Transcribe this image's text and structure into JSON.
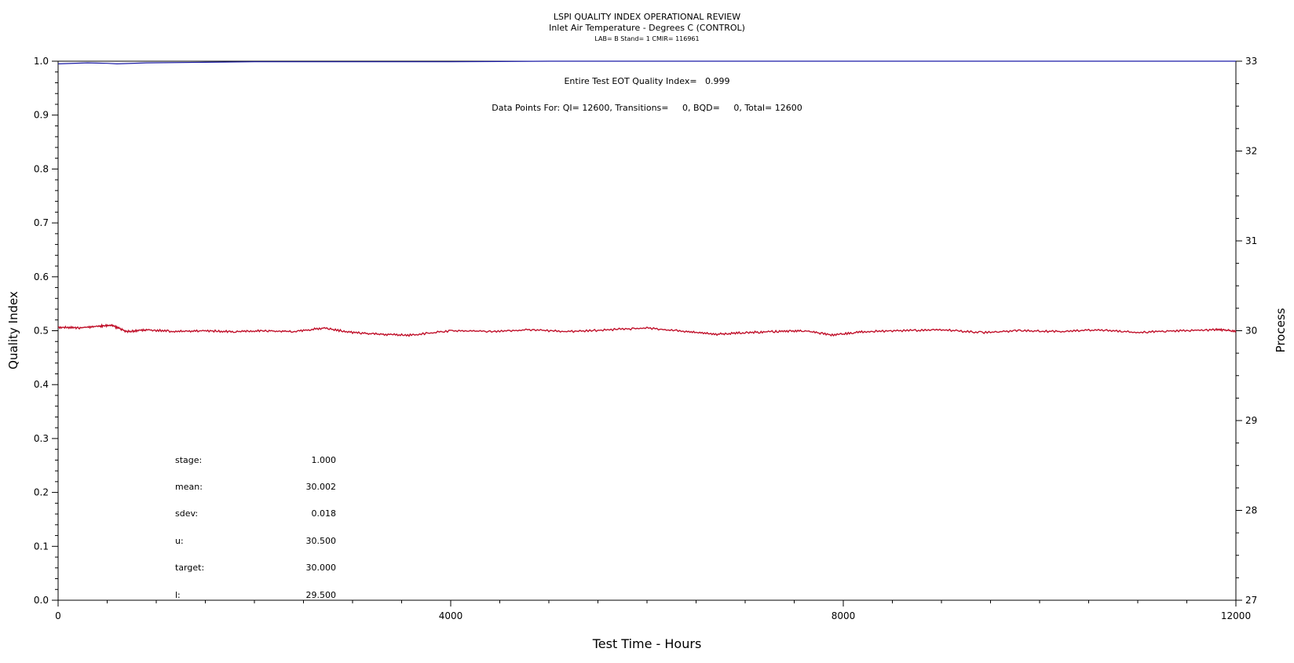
{
  "chart_data": {
    "type": "line",
    "title": "LSPI QUALITY INDEX OPERATIONAL REVIEW",
    "subtitle": "Inlet Air Temperature - Degrees C (CONTROL)",
    "sub_subtitle": "LAB= B Stand= 1 CMIR= 116961",
    "xlabel": "Test Time - Hours",
    "ylabel_left": "Quality Index",
    "ylabel_right": "Process",
    "xlim": [
      0,
      12000
    ],
    "ylim_left": [
      0.0,
      1.0
    ],
    "ylim_right": [
      27,
      33
    ],
    "x_ticks": [
      "0",
      "4000",
      "8000",
      "12000"
    ],
    "y_left_ticks": [
      "0.0",
      "0.1",
      "0.2",
      "0.3",
      "0.4",
      "0.5",
      "0.6",
      "0.7",
      "0.8",
      "0.9",
      "1.0"
    ],
    "y_right_ticks": [
      "27",
      "28",
      "29",
      "30",
      "31",
      "32",
      "33"
    ],
    "annotations": {
      "eot": "Entire Test EOT Quality Index=   0.999",
      "datapoints": "Data Points For: QI= 12600, Transitions=     0, BQD=     0, Total= 12600"
    },
    "stats": [
      {
        "label": "stage:",
        "value": "1.000"
      },
      {
        "label": "mean:",
        "value": "30.002"
      },
      {
        "label": "sdev:",
        "value": "0.018"
      },
      {
        "label": "u:",
        "value": "30.500"
      },
      {
        "label": "target:",
        "value": "30.000"
      },
      {
        "label": "l:",
        "value": "29.500"
      }
    ],
    "series": [
      {
        "axis": "left",
        "color": "#1a1aa6",
        "x": [
          0,
          300,
          500,
          600,
          900,
          1500,
          2000,
          3000,
          4000,
          5000,
          12000
        ],
        "y": [
          0.995,
          0.997,
          0.996,
          0.995,
          0.997,
          0.998,
          0.999,
          0.999,
          0.999,
          1.0,
          1.0
        ]
      },
      {
        "axis": "right",
        "color": "#c0102a",
        "x": [
          0,
          200,
          400,
          550,
          700,
          900,
          1200,
          1500,
          1800,
          2100,
          2400,
          2700,
          3000,
          3300,
          3600,
          4000,
          4400,
          4800,
          5200,
          5600,
          6000,
          6400,
          6700,
          7000,
          7300,
          7600,
          7900,
          8200,
          8600,
          9000,
          9400,
          9800,
          10200,
          10600,
          11000,
          11400,
          11800,
          12000
        ],
        "y": [
          30.04,
          30.03,
          30.05,
          30.06,
          29.99,
          30.01,
          29.99,
          30.0,
          29.99,
          30.0,
          29.99,
          30.03,
          29.98,
          29.96,
          29.95,
          30.0,
          29.99,
          30.01,
          29.99,
          30.01,
          30.03,
          29.99,
          29.96,
          29.98,
          29.99,
          30.0,
          29.95,
          29.99,
          30.0,
          30.01,
          29.98,
          30.0,
          29.99,
          30.01,
          29.98,
          30.0,
          30.01,
          30.0
        ]
      }
    ]
  }
}
